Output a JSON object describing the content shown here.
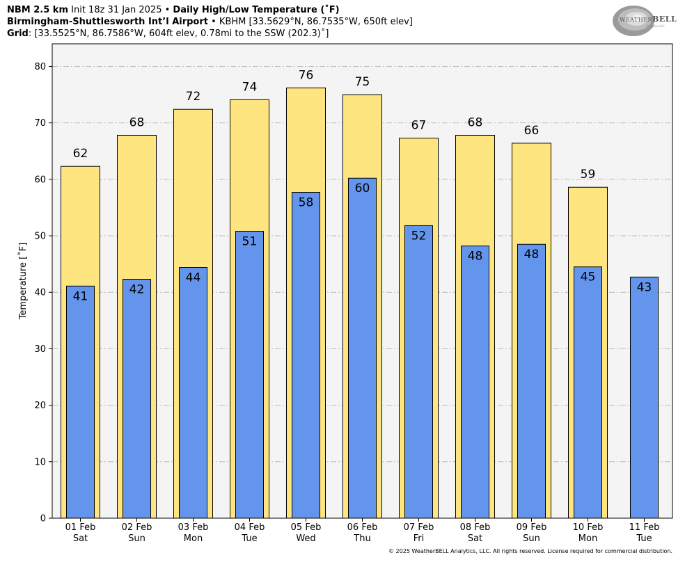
{
  "header": {
    "line1_bold1": "NBM 2.5 km",
    "line1_text1": " Init 18z 31 Jan 2025 • ",
    "line1_bold2": "Daily High/Low Temperature (˚F)",
    "line2_bold": "Birmingham-Shuttlesworth Int’l Airport",
    "line2_text": " • KBHM [33.5629°N, 86.7535°W, 650ft elev]",
    "line3_bold": "Grid",
    "line3_text": ": [33.5525°N, 86.7586°W, 604ft elev, 0.78mi to the SSW (202.3)˚]"
  },
  "logo": {
    "text_small": "WEATHER",
    "text_big": "BELL",
    "sub": "Analytics LLC"
  },
  "copyright": "© 2025 WeatherBELL Analytics, LLC. All rights reserved. License required for commercial distribution.",
  "colors": {
    "high_bar": "#FFE57F",
    "low_bar": "#6495ED",
    "plot_bg": "#F4F4F4",
    "grid": "#BBBBBB"
  },
  "chart_data": {
    "type": "bar",
    "ylabel": "Temperature [˚F]",
    "ylim": [
      0,
      84
    ],
    "yticks": [
      0,
      10,
      20,
      30,
      40,
      50,
      60,
      70,
      80
    ],
    "grid": true,
    "categories": [
      [
        "01 Feb",
        "Sat"
      ],
      [
        "02 Feb",
        "Sun"
      ],
      [
        "03 Feb",
        "Mon"
      ],
      [
        "04 Feb",
        "Tue"
      ],
      [
        "05 Feb",
        "Wed"
      ],
      [
        "06 Feb",
        "Thu"
      ],
      [
        "07 Feb",
        "Fri"
      ],
      [
        "08 Feb",
        "Sat"
      ],
      [
        "09 Feb",
        "Sun"
      ],
      [
        "10 Feb",
        "Mon"
      ],
      [
        "11 Feb",
        "Tue"
      ]
    ],
    "series": [
      {
        "role": "high",
        "values": [
          62.3,
          67.8,
          72.4,
          74.1,
          76.2,
          75.0,
          67.3,
          67.8,
          66.4,
          58.6,
          null
        ],
        "labels": [
          "62",
          "68",
          "72",
          "74",
          "76",
          "75",
          "67",
          "68",
          "66",
          "59",
          ""
        ]
      },
      {
        "role": "low",
        "values": [
          41.1,
          42.3,
          44.4,
          50.8,
          57.7,
          60.2,
          51.8,
          48.2,
          48.5,
          44.5,
          42.7
        ],
        "labels": [
          "41",
          "42",
          "44",
          "51",
          "58",
          "60",
          "52",
          "48",
          "48",
          "45",
          "43"
        ]
      }
    ]
  }
}
